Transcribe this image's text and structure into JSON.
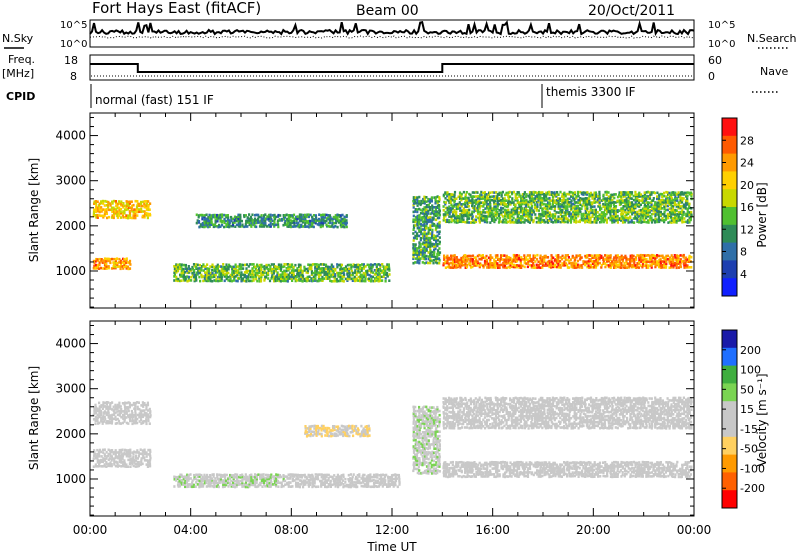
{
  "header": {
    "station": "Fort Hays East (fitACF)",
    "beam": "Beam 00",
    "date": "20/Oct/2011"
  },
  "top_panels": {
    "nsky_label": "N.Sky",
    "nsearch_label": "N.Search",
    "noise_ticks": [
      "10^5",
      "10^0"
    ],
    "freq_label_1": "Freq.",
    "freq_label_2": "[MHz]",
    "freq_ticks": [
      "18",
      "8"
    ],
    "nave_label": "Nave",
    "nave_ticks": [
      "60",
      "0"
    ],
    "cpid_label": "CPID",
    "cpid_segments": [
      {
        "label": "normal (fast) 151 IF",
        "start_hour": 0,
        "end_hour": 18
      },
      {
        "label": "themis 3300 IF",
        "start_hour": 18,
        "end_hour": 24
      }
    ],
    "freq_trace_mhz": [
      [
        0,
        15
      ],
      [
        1.9,
        15
      ],
      [
        1.9,
        11
      ],
      [
        14,
        11
      ],
      [
        14,
        15
      ],
      [
        24,
        15
      ]
    ]
  },
  "power_colorbar": {
    "label": "Power [dB]",
    "ticks": [
      "28",
      "24",
      "20",
      "16",
      "12",
      "8",
      "4"
    ],
    "colors": [
      "#ff1010",
      "#ff5a00",
      "#ff9a00",
      "#ffd000",
      "#c8d800",
      "#50c030",
      "#2e8b57",
      "#2f6fa8",
      "#1d3fb0",
      "#1020ff"
    ]
  },
  "velocity_colorbar": {
    "label": "Velocity [m s⁻¹]",
    "ticks": [
      "200",
      "100",
      "50",
      "15",
      "-15",
      "-50",
      "-100",
      "-200"
    ],
    "colors": [
      "#1a1aa8",
      "#1f6fff",
      "#3fae3f",
      "#7ad452",
      "#c8c8c8",
      "#c8c8c8",
      "#ffd060",
      "#ff9a00",
      "#ff6000",
      "#ff0000"
    ]
  },
  "chart_data": [
    {
      "type": "heatmap",
      "title": "",
      "ylabel": "Slant Range [km]",
      "xlabel": "",
      "ylim": [
        180,
        4500
      ],
      "xlim_hours": [
        0,
        24
      ],
      "y_ticks": [
        1000,
        2000,
        3000,
        4000
      ],
      "quantity": "Power [dB]",
      "echo_regions": [
        {
          "start_hour": 0.1,
          "end_hour": 1.6,
          "range_center_km": 1200,
          "range_width_km": 250,
          "value_db": 24
        },
        {
          "start_hour": 0.1,
          "end_hour": 2.4,
          "range_center_km": 2400,
          "range_width_km": 400,
          "value_db": 21
        },
        {
          "start_hour": 3.3,
          "end_hour": 11.9,
          "range_center_km": 1000,
          "range_width_km": 400,
          "value_db": 14
        },
        {
          "start_hour": 4.2,
          "end_hour": 10.2,
          "range_center_km": 2150,
          "range_width_km": 300,
          "value_db": 11
        },
        {
          "start_hour": 12.8,
          "end_hour": 13.9,
          "range_center_km": 1950,
          "range_width_km": 1500,
          "value_db": 12
        },
        {
          "start_hour": 14.0,
          "end_hour": 23.9,
          "range_center_km": 1250,
          "range_width_km": 300,
          "value_db": 25
        },
        {
          "start_hour": 14.0,
          "end_hour": 23.9,
          "range_center_km": 2450,
          "range_width_km": 700,
          "value_db": 14
        }
      ]
    },
    {
      "type": "heatmap",
      "title": "",
      "ylabel": "Slant Range [km]",
      "xlabel": "Time UT",
      "ylim": [
        180,
        4500
      ],
      "xlim_hours": [
        0,
        24
      ],
      "y_ticks": [
        1000,
        2000,
        3000,
        4000
      ],
      "x_ticks": [
        "00:00",
        "04:00",
        "08:00",
        "12:00",
        "16:00",
        "20:00",
        "00:00"
      ],
      "quantity": "Velocity [m s⁻¹]",
      "echo_regions": [
        {
          "start_hour": 0.1,
          "end_hour": 2.4,
          "range_center_km": 1500,
          "range_width_km": 400,
          "value_ms": 0
        },
        {
          "start_hour": 0.1,
          "end_hour": 2.4,
          "range_center_km": 2500,
          "range_width_km": 500,
          "value_ms": -30
        },
        {
          "start_hour": 3.3,
          "end_hour": 7.7,
          "range_center_km": 1000,
          "range_width_km": 300,
          "value_ms": 40
        },
        {
          "start_hour": 7.7,
          "end_hour": 12.3,
          "range_center_km": 1000,
          "range_width_km": 300,
          "value_ms": 30
        },
        {
          "start_hour": 8.5,
          "end_hour": 11.1,
          "range_center_km": 2100,
          "range_width_km": 250,
          "value_ms": -50
        },
        {
          "start_hour": 12.8,
          "end_hour": 13.9,
          "range_center_km": 1900,
          "range_width_km": 1500,
          "value_ms": 40
        },
        {
          "start_hour": 14.0,
          "end_hour": 23.9,
          "range_center_km": 1250,
          "range_width_km": 350,
          "value_ms": 0
        },
        {
          "start_hour": 14.0,
          "end_hour": 23.9,
          "range_center_km": 2500,
          "range_width_km": 700,
          "value_ms": -5
        }
      ]
    }
  ]
}
